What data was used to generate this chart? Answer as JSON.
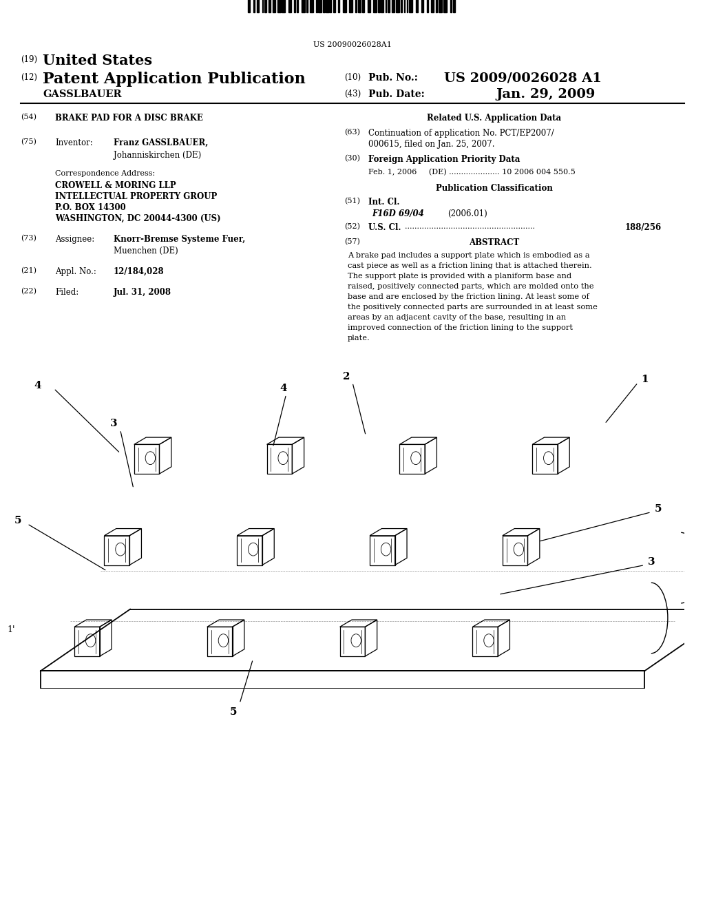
{
  "background_color": "#ffffff",
  "barcode_text": "US 20090026028A1",
  "header": {
    "number_19": "(19)",
    "united_states": "United States",
    "number_12": "(12)",
    "patent_app_pub": "Patent Application Publication",
    "gasslbauer": "GASSLBAUER",
    "number_10": "(10)",
    "pub_no_label": "Pub. No.:",
    "pub_no_value": "US 2009/0026028 A1",
    "number_43": "(43)",
    "pub_date_label": "Pub. Date:",
    "pub_date_value": "Jan. 29, 2009"
  },
  "left_column": {
    "num_54": "(54)",
    "title": "BRAKE PAD FOR A DISC BRAKE",
    "num_75": "(75)",
    "inventor_label": "Inventor:",
    "inventor_name": "Franz GASSLBAUER,",
    "inventor_city": "Johanniskirchen (DE)",
    "correspondence_label": "Correspondence Address:",
    "correspondence_line1": "CROWELL & MORING LLP",
    "correspondence_line2": "INTELLECTUAL PROPERTY GROUP",
    "correspondence_line3": "P.O. BOX 14300",
    "correspondence_line4": "WASHINGTON, DC 20044-4300 (US)",
    "num_73": "(73)",
    "assignee_label": "Assignee:",
    "assignee_name": "Knorr-Bremse Systeme Fuer,",
    "assignee_city": "Muenchen (DE)",
    "num_21": "(21)",
    "appl_no_label": "Appl. No.:",
    "appl_no_value": "12/184,028",
    "num_22": "(22)",
    "filed_label": "Filed:",
    "filed_value": "Jul. 31, 2008"
  },
  "right_column": {
    "related_us_title": "Related U.S. Application Data",
    "num_63": "(63)",
    "continuation_line1": "Continuation of application No. PCT/EP2007/",
    "continuation_line2": "000615, filed on Jan. 25, 2007.",
    "num_30": "(30)",
    "foreign_app_title": "Foreign Application Priority Data",
    "foreign_app_data": "Feb. 1, 2006     (DE) ..................... 10 2006 004 550.5",
    "pub_class_title": "Publication Classification",
    "num_51": "(51)",
    "int_cl_label": "Int. Cl.",
    "int_cl_value": "F16D 69/04",
    "int_cl_year": "(2006.01)",
    "num_52": "(52)",
    "us_cl_label": "U.S. Cl. ",
    "us_cl_dots": "......................................................",
    "us_cl_value": "188/256",
    "num_57": "(57)",
    "abstract_title": "ABSTRACT",
    "abstract_lines": [
      "A brake pad includes a support plate which is embodied as a",
      "cast piece as well as a friction lining that is attached therein.",
      "The support plate is provided with a planiform base and",
      "raised, positively connected parts, which are molded onto the",
      "base and are enclosed by the friction lining. At least some of",
      "the positively connected parts are surrounded in at least some",
      "areas by an adjacent cavity of the base, resulting in an",
      "improved connection of the friction lining to the support",
      "plate."
    ]
  }
}
